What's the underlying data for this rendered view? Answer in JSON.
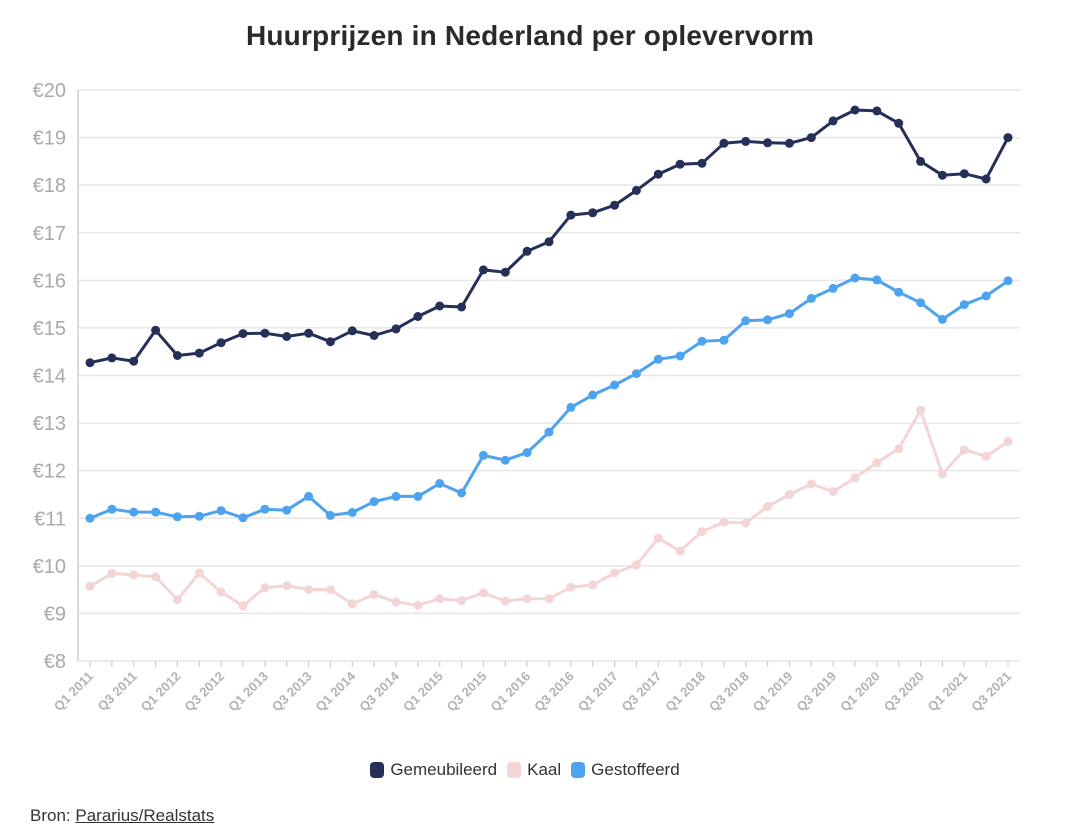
{
  "chart_data": {
    "type": "line",
    "title": "Huurprijzen in Nederland per oplevervorm",
    "xlabel": "",
    "ylabel": "",
    "ylim": [
      8,
      20
    ],
    "y_ticks": [
      "€20",
      "€19",
      "€18",
      "€17",
      "€16",
      "€15",
      "€14",
      "€13",
      "€12",
      "€11",
      "€10",
      "€9",
      "€8"
    ],
    "y_tick_values": [
      20,
      19,
      18,
      17,
      16,
      15,
      14,
      13,
      12,
      11,
      10,
      9,
      8
    ],
    "grid": true,
    "legend_position": "bottom-center",
    "categories": [
      "Q1 2011",
      "Q2 2011",
      "Q3 2011",
      "Q4 2011",
      "Q1 2012",
      "Q2 2012",
      "Q3 2012",
      "Q4 2012",
      "Q1 2013",
      "Q2 2013",
      "Q3 2013",
      "Q4 2013",
      "Q1 2014",
      "Q2 2014",
      "Q3 2014",
      "Q4 2014",
      "Q1 2015",
      "Q2 2015",
      "Q3 2015",
      "Q4 2015",
      "Q1 2016",
      "Q2 2016",
      "Q3 2016",
      "Q4 2016",
      "Q1 2017",
      "Q2 2017",
      "Q3 2017",
      "Q4 2017",
      "Q1 2018",
      "Q2 2018",
      "Q3 2018",
      "Q4 2018",
      "Q1 2019",
      "Q2 2019",
      "Q3 2019",
      "Q4 2019",
      "Q1 2020",
      "Q2 2020",
      "Q3 2020",
      "Q4 2020",
      "Q1 2021",
      "Q2 2021",
      "Q3 2021"
    ],
    "x_tick_labels": [
      "Q1 2011",
      "Q3 2011",
      "Q1 2012",
      "Q3 2012",
      "Q1 2013",
      "Q3 2013",
      "Q1 2014",
      "Q3 2014",
      "Q1 2015",
      "Q3 2015",
      "Q1 2016",
      "Q3 2016",
      "Q1 2017",
      "Q3 2017",
      "Q1 2018",
      "Q3 2018",
      "Q1 2019",
      "Q3 2019",
      "Q1 2020",
      "Q3 2020",
      "Q1 2021",
      "Q3 2021"
    ],
    "series": [
      {
        "name": "Gemeubileerd",
        "color": "#262f57",
        "values": [
          14.27,
          14.37,
          14.3,
          14.95,
          14.42,
          14.47,
          14.69,
          14.88,
          14.89,
          14.82,
          14.89,
          14.71,
          14.94,
          14.84,
          14.98,
          15.24,
          15.46,
          15.44,
          16.22,
          16.17,
          16.61,
          16.81,
          17.37,
          17.42,
          17.58,
          17.89,
          18.23,
          18.44,
          18.46,
          18.88,
          18.92,
          18.89,
          18.88,
          19.0,
          19.35,
          19.58,
          19.56,
          19.3,
          18.5,
          18.21,
          18.24,
          18.13,
          19.0
        ]
      },
      {
        "name": "Kaal",
        "color": "#f4d5d5",
        "values": [
          9.57,
          9.84,
          9.81,
          9.77,
          9.29,
          9.85,
          9.45,
          9.16,
          9.54,
          9.58,
          9.5,
          9.5,
          9.2,
          9.4,
          9.24,
          9.17,
          9.31,
          9.27,
          9.43,
          9.26,
          9.31,
          9.31,
          9.55,
          9.6,
          9.85,
          10.02,
          10.58,
          10.31,
          10.72,
          10.92,
          10.9,
          11.25,
          11.5,
          11.72,
          11.56,
          11.85,
          12.17,
          12.46,
          13.27,
          11.93,
          12.44,
          12.3,
          12.61
        ]
      },
      {
        "name": "Gestoffeerd",
        "color": "#4da3ee",
        "values": [
          11.0,
          11.19,
          11.13,
          11.13,
          11.03,
          11.04,
          11.16,
          11.01,
          11.19,
          11.17,
          11.46,
          11.06,
          11.12,
          11.35,
          11.46,
          11.46,
          11.73,
          11.53,
          12.32,
          12.22,
          12.38,
          12.81,
          13.33,
          13.59,
          13.8,
          14.04,
          14.34,
          14.41,
          14.72,
          14.74,
          15.15,
          15.17,
          15.3,
          15.62,
          15.83,
          16.05,
          16.01,
          15.75,
          15.53,
          15.18,
          15.49,
          15.67,
          15.99
        ]
      }
    ]
  },
  "legend": {
    "items": [
      {
        "label": "Gemeubileerd",
        "color": "#262f57"
      },
      {
        "label": "Kaal",
        "color": "#f4d5d5"
      },
      {
        "label": "Gestoffeerd",
        "color": "#4da3ee"
      }
    ]
  },
  "source": {
    "prefix": "Bron:",
    "link_text": "Pararius/Realstats"
  }
}
